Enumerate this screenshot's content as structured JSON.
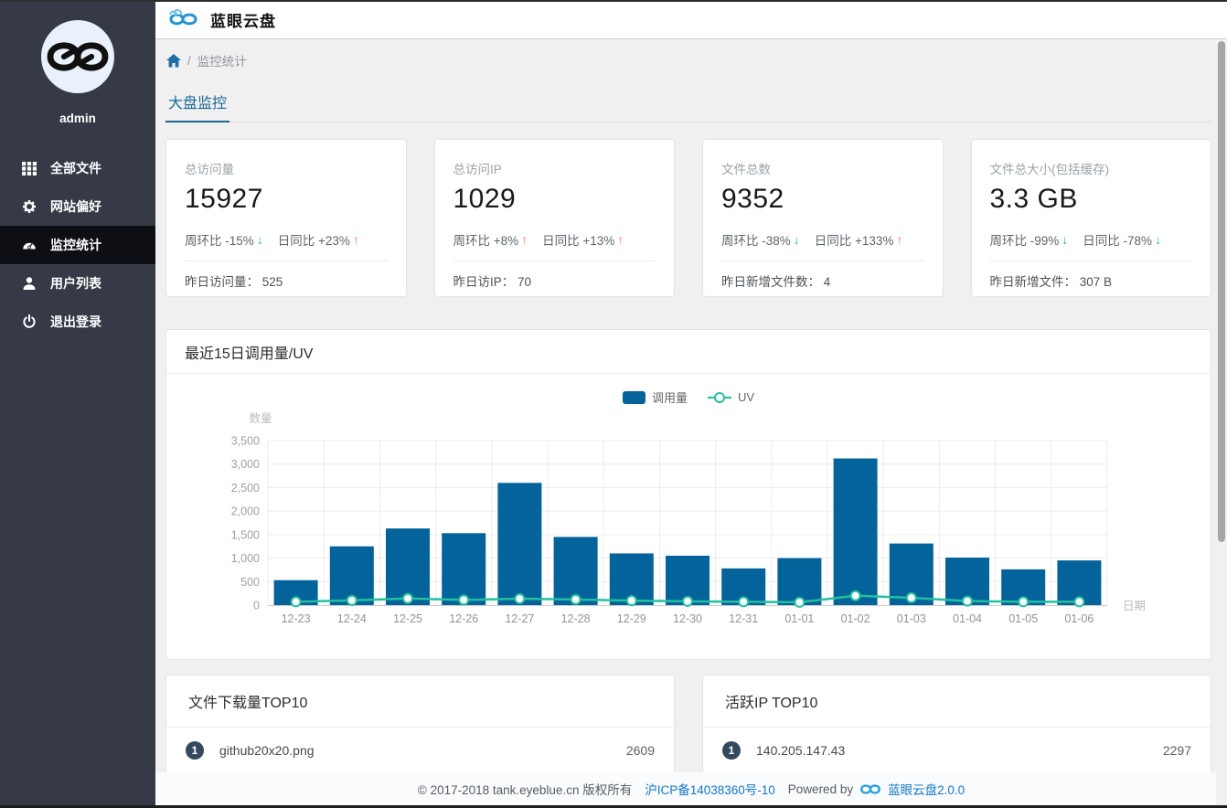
{
  "app": {
    "title": "蓝眼云盘"
  },
  "sidebar": {
    "username": "admin",
    "items": [
      {
        "label": "全部文件",
        "icon": "grid-icon",
        "active": false
      },
      {
        "label": "网站偏好",
        "icon": "gear-icon",
        "active": false
      },
      {
        "label": "监控统计",
        "icon": "dashboard-icon",
        "active": true
      },
      {
        "label": "用户列表",
        "icon": "user-icon",
        "active": false
      },
      {
        "label": "退出登录",
        "icon": "power-icon",
        "active": false
      }
    ]
  },
  "breadcrumb": {
    "separator": "/",
    "current": "监控统计"
  },
  "tabs": [
    {
      "label": "大盘监控",
      "active": true
    }
  ],
  "stat_cards": [
    {
      "label": "总访问量",
      "value": "15927",
      "week_label": "周环比",
      "week_change": "-15%",
      "week_dir": "down",
      "day_label": "日同比",
      "day_change": "+23%",
      "day_dir": "up",
      "footer_label": "昨日访问量：",
      "footer_value": "525"
    },
    {
      "label": "总访问IP",
      "value": "1029",
      "week_label": "周环比",
      "week_change": "+8%",
      "week_dir": "up",
      "day_label": "日同比",
      "day_change": "+13%",
      "day_dir": "up",
      "footer_label": "昨日访IP：",
      "footer_value": "70"
    },
    {
      "label": "文件总数",
      "value": "9352",
      "week_label": "周环比",
      "week_change": "-38%",
      "week_dir": "down",
      "day_label": "日同比",
      "day_change": "+133%",
      "day_dir": "up",
      "footer_label": "昨日新增文件数：",
      "footer_value": "4"
    },
    {
      "label": "文件总大小(包括缓存)",
      "value": "3.3 GB",
      "week_label": "周环比",
      "week_change": "-99%",
      "week_dir": "down",
      "day_label": "日同比",
      "day_change": "-78%",
      "day_dir": "down",
      "footer_label": "昨日新增文件：",
      "footer_value": "307 B"
    }
  ],
  "chart_data": {
    "type": "bar",
    "title": "最近15日调用量/UV",
    "xlabel": "日期",
    "ylabel": "数量",
    "ylim": [
      0,
      3500
    ],
    "ytick_step": 500,
    "grid": true,
    "legend_position": "top-center",
    "categories": [
      "12-23",
      "12-24",
      "12-25",
      "12-26",
      "12-27",
      "12-28",
      "12-29",
      "12-30",
      "12-31",
      "01-01",
      "01-02",
      "01-03",
      "01-04",
      "01-05",
      "01-06"
    ],
    "series": [
      {
        "name": "调用量",
        "type": "bar",
        "color": "#04639a",
        "values": [
          530,
          1250,
          1630,
          1530,
          2600,
          1450,
          1100,
          1050,
          780,
          1000,
          3120,
          1310,
          1010,
          760,
          950
        ]
      },
      {
        "name": "UV",
        "type": "line",
        "color": "#22c0a0",
        "values": [
          70,
          100,
          140,
          110,
          135,
          120,
          95,
          80,
          70,
          60,
          200,
          155,
          85,
          70,
          70
        ]
      }
    ]
  },
  "top_lists": [
    {
      "title": "文件下载量TOP10",
      "items": [
        {
          "rank": "1",
          "name": "github20x20.png",
          "count": "2609"
        }
      ]
    },
    {
      "title": "活跃IP TOP10",
      "items": [
        {
          "rank": "1",
          "name": "140.205.147.43",
          "count": "2297"
        }
      ]
    }
  ],
  "footer": {
    "copyright": "© 2017-2018 tank.eyeblue.cn 版权所有",
    "icp": "沪ICP备14038360号-10",
    "powered_by": "Powered by",
    "brand": "蓝眼云盘2.0.0"
  },
  "colors": {
    "sidebar_bg": "#353a46",
    "sidebar_active_bg": "#0d0f14",
    "accent_blue": "#176a96",
    "bar_blue": "#04639a",
    "line_teal": "#22c0a0",
    "trend_up": "#ef8767",
    "trend_down": "#27b795",
    "link_blue": "#1478c8",
    "badge_bg": "#35495e",
    "page_bg": "#f0f0f1"
  }
}
